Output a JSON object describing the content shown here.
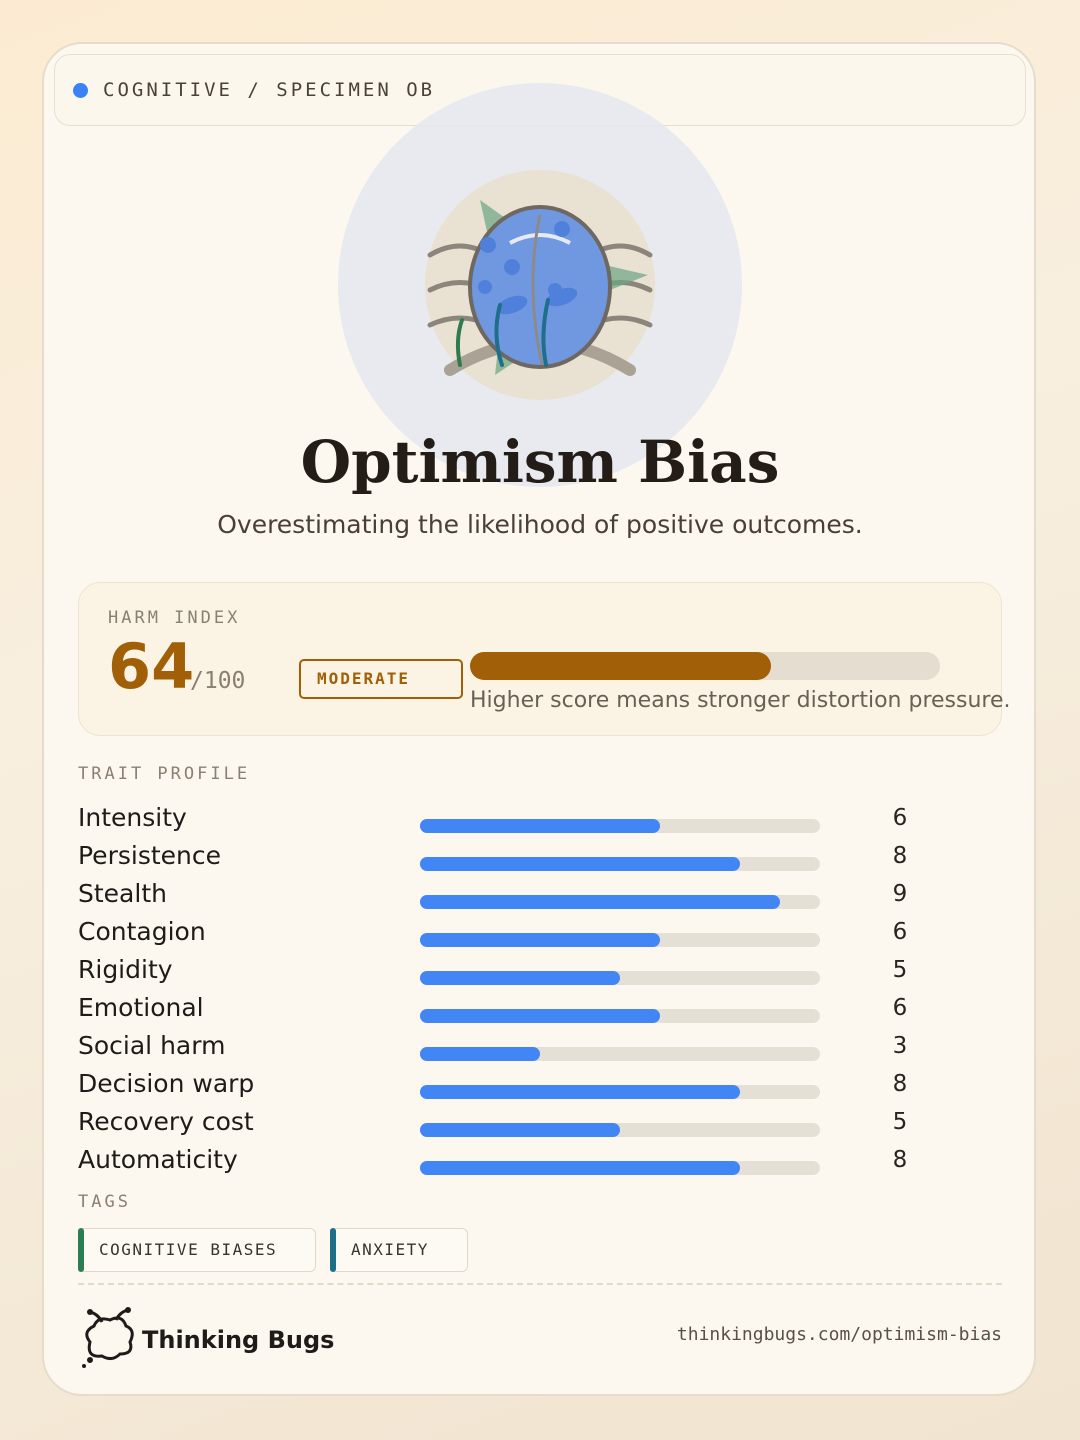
{
  "header": {
    "label": "COGNITIVE / SPECIMEN OB"
  },
  "title": "Optimism Bias",
  "subtitle": "Overestimating the likelihood of positive outcomes.",
  "harm": {
    "label": "HARM INDEX",
    "score": 64,
    "max": {
      "value": 100,
      "label": "/100"
    },
    "level": "MODERATE",
    "note": "Higher score means stronger distortion pressure."
  },
  "traits": {
    "label": "TRAIT PROFILE",
    "xlim": [
      0,
      10
    ],
    "color": "#4285f4",
    "names": [
      "Intensity",
      "Persistence",
      "Stealth",
      "Contagion",
      "Rigidity",
      "Emotional",
      "Social harm",
      "Decision warp",
      "Recovery cost",
      "Automaticity"
    ],
    "values": [
      6,
      8,
      9,
      6,
      5,
      6,
      3,
      8,
      5,
      8
    ]
  },
  "tags": {
    "label": "TAGS",
    "items": [
      {
        "name": "COGNITIVE BIASES",
        "color": "#2e7d52"
      },
      {
        "name": "ANXIETY",
        "color": "#1f6f8b"
      }
    ]
  },
  "footer": {
    "brand": "Thinking Bugs",
    "url": "thinkingbugs.com/optimism-bias"
  }
}
